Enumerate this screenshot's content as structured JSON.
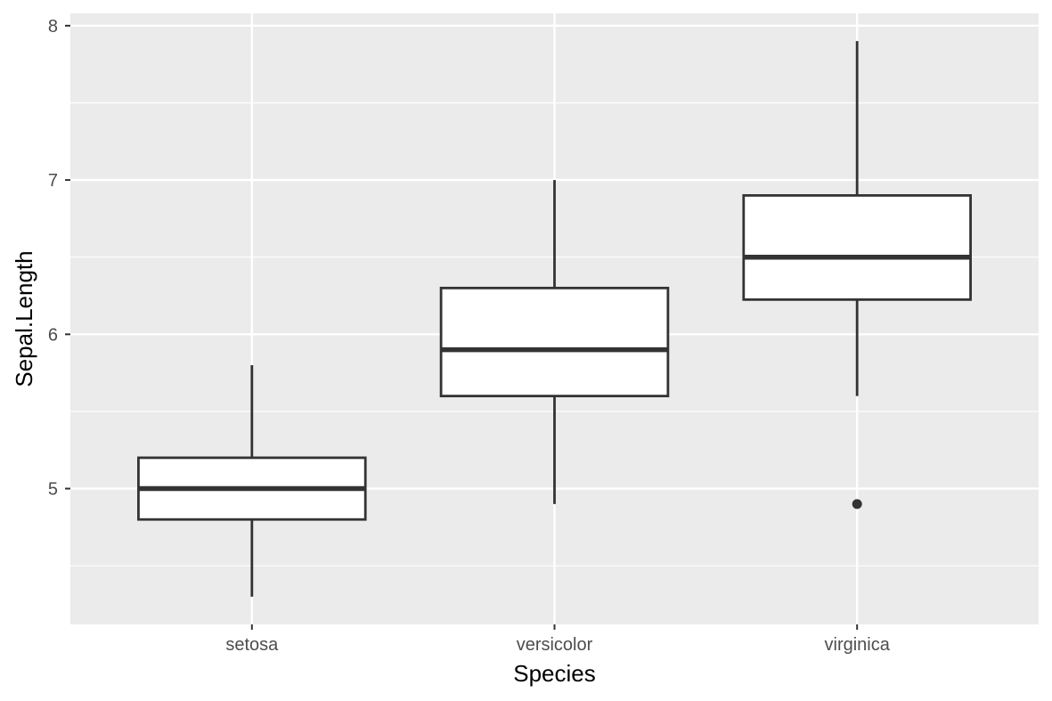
{
  "chart_data": {
    "type": "box",
    "title": "",
    "xlabel": "Species",
    "ylabel": "Sepal.Length",
    "ylim": [
      4.12,
      8.08
    ],
    "yticks": [
      5,
      6,
      7,
      8
    ],
    "yticks_minor": [
      4.5,
      5.5,
      6.5,
      7.5
    ],
    "categories": [
      "setosa",
      "versicolor",
      "virginica"
    ],
    "boxes": [
      {
        "category": "setosa",
        "whisker_low": 4.3,
        "q1": 4.8,
        "median": 5.0,
        "q3": 5.2,
        "whisker_high": 5.8,
        "outliers": []
      },
      {
        "category": "versicolor",
        "whisker_low": 4.9,
        "q1": 5.6,
        "median": 5.9,
        "q3": 6.3,
        "whisker_high": 7.0,
        "outliers": []
      },
      {
        "category": "virginica",
        "whisker_low": 5.6,
        "q1": 6.225,
        "median": 6.5,
        "q3": 6.9,
        "whisker_high": 7.9,
        "outliers": [
          4.9
        ]
      }
    ],
    "grid": true,
    "legend": "none",
    "colors": {
      "panel_background": "#ebebeb",
      "grid": "#ffffff",
      "box_fill": "#ffffff",
      "box_stroke": "#333333",
      "tick_text": "#4d4d4d",
      "axis_title_text": "#000000"
    }
  }
}
